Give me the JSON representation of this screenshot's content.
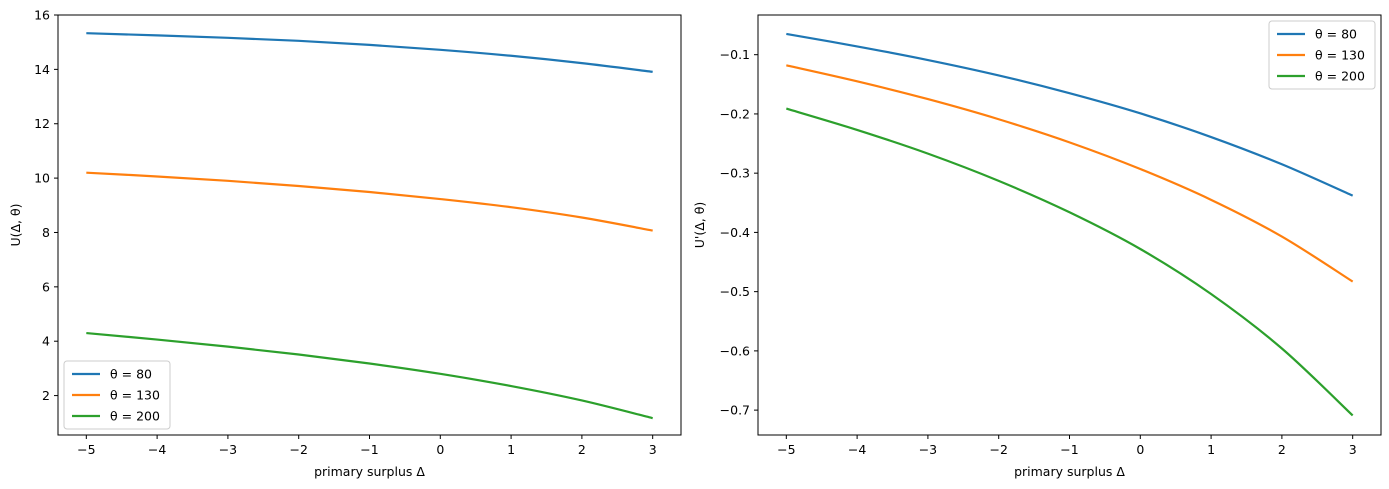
{
  "chart_data": [
    {
      "type": "line",
      "xlabel": "primary surplus Δ",
      "ylabel": "U(Δ, θ)",
      "xlim": [
        -5.4,
        3.4
      ],
      "ylim": [
        0.55,
        16.0
      ],
      "xticks": [
        -5,
        -4,
        -3,
        -2,
        -1,
        0,
        1,
        2,
        3
      ],
      "xtick_labels": [
        "−5",
        "−4",
        "−3",
        "−2",
        "−1",
        "0",
        "1",
        "2",
        "3"
      ],
      "yticks": [
        2,
        4,
        6,
        8,
        10,
        12,
        14,
        16
      ],
      "ytick_labels": [
        "2",
        "4",
        "6",
        "8",
        "10",
        "12",
        "14",
        "16"
      ],
      "legend_position": "lower-left",
      "grid": false,
      "x": [
        -5,
        -4,
        -3,
        -2,
        -1,
        0,
        1,
        2,
        3
      ],
      "series": [
        {
          "name": "θ = 80",
          "color": "#1f77b4",
          "values": [
            15.33,
            15.25,
            15.16,
            15.05,
            14.9,
            14.72,
            14.5,
            14.23,
            13.91
          ]
        },
        {
          "name": "θ = 130",
          "color": "#ff7f0e",
          "values": [
            10.2,
            10.06,
            9.9,
            9.71,
            9.49,
            9.23,
            8.93,
            8.55,
            8.07
          ]
        },
        {
          "name": "θ = 200",
          "color": "#2ca02c",
          "values": [
            4.3,
            4.06,
            3.8,
            3.51,
            3.18,
            2.8,
            2.35,
            1.82,
            1.17
          ]
        }
      ]
    },
    {
      "type": "line",
      "xlabel": "primary surplus Δ",
      "ylabel": "U'(Δ, θ)",
      "xlim": [
        -5.4,
        3.4
      ],
      "ylim": [
        -0.742,
        -0.033
      ],
      "xticks": [
        -5,
        -4,
        -3,
        -2,
        -1,
        0,
        1,
        2,
        3
      ],
      "xtick_labels": [
        "−5",
        "−4",
        "−3",
        "−2",
        "−1",
        "0",
        "1",
        "2",
        "3"
      ],
      "yticks": [
        -0.1,
        -0.2,
        -0.3,
        -0.4,
        -0.5,
        -0.6,
        -0.7
      ],
      "ytick_labels": [
        "−0.1",
        "−0.2",
        "−0.3",
        "−0.4",
        "−0.5",
        "−0.6",
        "−0.7"
      ],
      "legend_position": "top-right",
      "grid": false,
      "x": [
        -5,
        -4,
        -3,
        -2,
        -1,
        0,
        1,
        2,
        3
      ],
      "series": [
        {
          "name": "θ = 80",
          "color": "#1f77b4",
          "values": [
            -0.065,
            -0.086,
            -0.109,
            -0.135,
            -0.165,
            -0.199,
            -0.239,
            -0.285,
            -0.338
          ]
        },
        {
          "name": "θ = 130",
          "color": "#ff7f0e",
          "values": [
            -0.118,
            -0.145,
            -0.175,
            -0.209,
            -0.248,
            -0.293,
            -0.345,
            -0.407,
            -0.483
          ]
        },
        {
          "name": "θ = 200",
          "color": "#2ca02c",
          "values": [
            -0.191,
            -0.227,
            -0.267,
            -0.313,
            -0.366,
            -0.428,
            -0.504,
            -0.596,
            -0.709
          ]
        }
      ]
    }
  ]
}
